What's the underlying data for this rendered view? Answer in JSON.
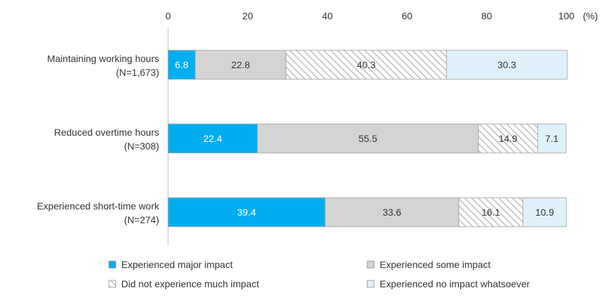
{
  "chart_data": {
    "type": "bar",
    "orientation": "horizontal",
    "stacked": true,
    "xlim": [
      0,
      100
    ],
    "x_ticks": [
      "0",
      "20",
      "40",
      "60",
      "80",
      "100"
    ],
    "x_unit": "(%)",
    "categories": [
      {
        "line1": "Maintaining working hours",
        "line2": "(N=1,673)"
      },
      {
        "line1": "Reduced overtime hours",
        "line2": "(N=308)"
      },
      {
        "line1": "Experienced short-time work",
        "line2": "(N=274)"
      }
    ],
    "series": [
      {
        "name": "Experienced major impact",
        "color": "#00aeef",
        "pattern": "solid",
        "label_color": "#ffffff",
        "values": [
          6.8,
          22.4,
          39.4
        ]
      },
      {
        "name": "Experienced some impact",
        "color": "#d4d4d4",
        "pattern": "solid",
        "label_color": "#333333",
        "values": [
          22.8,
          55.5,
          33.6
        ]
      },
      {
        "name": "Did not experience much impact",
        "color": "#ffffff",
        "pattern": "hatch",
        "label_color": "#333333",
        "values": [
          40.3,
          14.9,
          16.1
        ]
      },
      {
        "name": "Experienced no impact whatsoever",
        "color": "#dff2fc",
        "pattern": "solid",
        "label_color": "#333333",
        "values": [
          30.3,
          7.1,
          10.9
        ]
      }
    ],
    "value_labels": [
      [
        "6.8",
        "22.4",
        "39.4"
      ],
      [
        "22.8",
        "55.5",
        "33.6"
      ],
      [
        "40.3",
        "14.9",
        "16.1"
      ],
      [
        "30.3",
        "7.1",
        "10.9"
      ]
    ],
    "legend_position": "bottom",
    "grid": false
  }
}
